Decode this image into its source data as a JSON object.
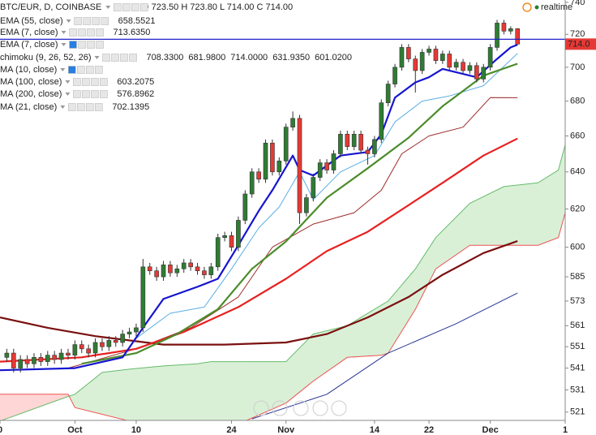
{
  "chart_data": {
    "type": "candlestick",
    "title": "BTC/EUR, D, COINBASE",
    "ohlc_text": "O 723.50 H 723.80 L 714.00 C 714.00",
    "status": "realtime",
    "last_price_label": "714.0",
    "log_scale": true,
    "grid": false,
    "ylim": [
      517.3,
      741.5
    ],
    "yticks": [
      521,
      531,
      541,
      551,
      561,
      573,
      585,
      600,
      620,
      640,
      660,
      680,
      700,
      720,
      740
    ],
    "xlim": [
      0,
      83
    ],
    "xticks": [
      {
        "value": 0,
        "label": "0"
      },
      {
        "value": 11,
        "label": "Oct"
      },
      {
        "value": 20,
        "label": "10"
      },
      {
        "value": 34,
        "label": "24"
      },
      {
        "value": 42,
        "label": "Nov"
      },
      {
        "value": 55,
        "label": "14"
      },
      {
        "value": 63,
        "label": "22"
      },
      {
        "value": 72,
        "label": "Dec"
      },
      {
        "value": 83,
        "label": "1"
      }
    ],
    "up_color": "#2e7d32",
    "down_color": "#e53935",
    "hline": {
      "value": 717,
      "color": "#2222cc"
    },
    "x": [
      1,
      2,
      3,
      4,
      5,
      6,
      7,
      8,
      9,
      10,
      11,
      12,
      13,
      14,
      15,
      16,
      17,
      18,
      19,
      20,
      21,
      22,
      23,
      24,
      25,
      26,
      27,
      28,
      29,
      30,
      31,
      32,
      33,
      34,
      35,
      36,
      37,
      38,
      39,
      40,
      41,
      42,
      43,
      44,
      45,
      46,
      47,
      48,
      49,
      50,
      51,
      52,
      53,
      54,
      55,
      56,
      57,
      58,
      59,
      60,
      61,
      62,
      63,
      64,
      65,
      66,
      67,
      68,
      69,
      70,
      71,
      72,
      73,
      74,
      75,
      76
    ],
    "open": [
      546,
      548,
      541,
      545,
      543,
      546,
      544,
      547,
      545,
      548,
      547,
      552,
      550,
      548,
      553,
      551,
      554,
      553,
      557,
      558,
      560,
      590,
      588,
      585,
      591,
      587,
      589,
      592,
      590,
      588,
      586,
      590,
      605,
      606,
      600,
      614,
      628,
      640,
      636,
      656,
      640,
      646,
      665,
      670,
      618,
      626,
      637,
      645,
      641,
      650,
      661,
      654,
      661,
      652,
      650,
      658,
      679,
      690,
      700,
      712,
      705,
      698,
      709,
      711,
      704,
      708,
      700,
      703,
      698,
      701,
      693,
      700,
      712,
      727,
      722,
      723.5
    ],
    "high": [
      550,
      550,
      547,
      547,
      548,
      548,
      549,
      549,
      550,
      550,
      554,
      554,
      552,
      555,
      555,
      556,
      556,
      559,
      560,
      562,
      594,
      592,
      590,
      593,
      593,
      591,
      594,
      594,
      592,
      590,
      592,
      607,
      608,
      608,
      616,
      630,
      642,
      642,
      658,
      658,
      648,
      667,
      674,
      672,
      628,
      639,
      647,
      647,
      652,
      663,
      663,
      663,
      663,
      654,
      660,
      681,
      692,
      702,
      714,
      714,
      707,
      711,
      713,
      713,
      710,
      710,
      705,
      705,
      703,
      703,
      702,
      714,
      729,
      729,
      725,
      723.8
    ],
    "low": [
      544,
      539,
      539,
      541,
      541,
      542,
      542,
      543,
      543,
      545,
      545,
      548,
      546,
      546,
      549,
      549,
      551,
      551,
      555,
      556,
      558,
      586,
      583,
      583,
      585,
      585,
      587,
      588,
      586,
      584,
      584,
      588,
      603,
      598,
      598,
      612,
      626,
      634,
      634,
      638,
      638,
      644,
      663,
      612,
      616,
      624,
      635,
      639,
      639,
      648,
      652,
      652,
      650,
      644,
      648,
      656,
      677,
      688,
      698,
      703,
      685,
      696,
      707,
      702,
      702,
      698,
      698,
      696,
      696,
      691,
      691,
      698,
      710,
      720,
      720,
      714
    ],
    "close": [
      548,
      541,
      545,
      543,
      546,
      544,
      547,
      545,
      548,
      547,
      552,
      550,
      548,
      553,
      551,
      554,
      553,
      557,
      558,
      560,
      590,
      588,
      585,
      591,
      587,
      589,
      592,
      590,
      588,
      586,
      590,
      605,
      606,
      600,
      614,
      628,
      640,
      636,
      656,
      640,
      646,
      665,
      670,
      618,
      626,
      637,
      645,
      641,
      650,
      661,
      654,
      661,
      652,
      650,
      658,
      679,
      690,
      700,
      712,
      705,
      698,
      709,
      711,
      704,
      708,
      700,
      703,
      698,
      701,
      693,
      700,
      712,
      727,
      722,
      723.5,
      714
    ],
    "cloud": {
      "x": [
        0,
        10,
        11,
        15,
        19,
        24,
        29,
        31,
        36,
        42,
        46,
        51,
        56,
        57,
        61,
        64,
        69,
        74,
        79,
        82,
        83
      ],
      "span_a": [
        517,
        528,
        529,
        539,
        540.5,
        542,
        543,
        544,
        544,
        544,
        557,
        561,
        571,
        573,
        589,
        605,
        623,
        632,
        634,
        641,
        655
      ],
      "span_b": [
        529,
        529,
        523,
        520,
        517,
        517,
        517,
        517,
        517,
        525,
        535,
        546,
        547,
        548,
        569,
        589,
        601,
        601,
        601,
        605,
        618
      ],
      "a_color": "#66bb6a",
      "b_color": "#ef5350",
      "up_fill": "rgba(120,200,110,0.28)",
      "down_fill": "rgba(255,120,120,0.3)"
    },
    "lines": [
      {
        "color": "#9c2a2a",
        "style": "thin",
        "x": [
          10,
          20,
          28,
          35,
          40,
          46,
          52,
          56,
          59,
          63,
          68,
          72,
          76
        ],
        "values": [
          541,
          550,
          560,
          575,
          600,
          612,
          618,
          630,
          650,
          660,
          665,
          682,
          681.98
        ]
      },
      {
        "color": "#5aaee6",
        "style": "thin",
        "x": [
          20,
          25,
          30,
          34,
          38,
          41,
          44,
          46,
          50,
          55,
          58,
          62,
          66,
          71,
          76
        ],
        "values": [
          555,
          567,
          570,
          589,
          610,
          621,
          640,
          625,
          640,
          649,
          668,
          680,
          683,
          689,
          708.33
        ]
      },
      {
        "color": "#283593",
        "style": "thin",
        "x": [
          37,
          48,
          57,
          67,
          76
        ],
        "values": [
          518,
          529,
          548,
          562,
          576.8962
        ]
      },
      {
        "color": "#7b1010",
        "style": "thick",
        "x": [
          0,
          7,
          14,
          24,
          33,
          42,
          48,
          54,
          60,
          65,
          71,
          76
        ],
        "values": [
          565,
          560,
          556,
          552,
          552,
          553,
          557,
          565,
          575,
          586,
          597,
          603.2075
        ]
      },
      {
        "color": "#e82020",
        "style": "thick",
        "x": [
          0,
          12,
          20,
          27,
          35,
          42,
          48,
          54,
          60,
          65,
          71,
          76
        ],
        "values": [
          544,
          546,
          550,
          558,
          570,
          584,
          598,
          608,
          622,
          634,
          649,
          658.5521
        ]
      },
      {
        "color": "#4c8c2a",
        "style": "thick",
        "x": [
          12,
          20,
          26,
          32,
          37,
          42,
          48,
          54,
          60,
          65,
          71,
          76
        ],
        "values": [
          543,
          548,
          557,
          569,
          589,
          603,
          626,
          642,
          659,
          677,
          695,
          702.1395
        ]
      },
      {
        "color": "#1515d0",
        "style": "thick",
        "x": [
          0,
          11,
          18,
          21,
          24,
          29,
          32,
          35,
          38,
          40,
          43,
          44,
          46,
          50,
          54,
          56,
          58,
          61,
          63,
          65,
          70,
          73,
          75,
          76
        ],
        "values": [
          540,
          541,
          546,
          560,
          574,
          580,
          584,
          601,
          619,
          630,
          649,
          641,
          638,
          649,
          651,
          661,
          682,
          691,
          694,
          699,
          694,
          705,
          712,
          713.635
        ]
      }
    ],
    "legend": [
      {
        "label": "EMA (55, close)",
        "values": [
          "658.5521"
        ],
        "colors": [
          "#e82020"
        ]
      },
      {
        "label": "EMA (7, close)",
        "values": [
          "713.6350"
        ],
        "colors": [
          "#1515d0"
        ]
      },
      {
        "label": "EMA (7, close)",
        "values": [],
        "colors": [],
        "hidden": true
      },
      {
        "label": "chimoku (9, 26, 52, 26)",
        "values": [
          "708.3300",
          "681.9800",
          "714.0000",
          "631.9350",
          "601.0200"
        ],
        "colors": [
          "#3a9ad9",
          "#9c2a2a",
          "#4c8c2a",
          "#2e9e2e",
          "#d32f2f"
        ]
      },
      {
        "label": "MA (10, close)",
        "values": [],
        "colors": [],
        "hidden": true
      },
      {
        "label": "MA (100, close)",
        "values": [
          "603.2075"
        ],
        "colors": [
          "#7b1010"
        ]
      },
      {
        "label": "MA (200, close)",
        "values": [
          "576.8962"
        ],
        "colors": [
          "#283593"
        ]
      },
      {
        "label": "MA (21, close)",
        "values": [
          "702.1395"
        ],
        "colors": [
          "#4c8c2a"
        ]
      }
    ]
  }
}
